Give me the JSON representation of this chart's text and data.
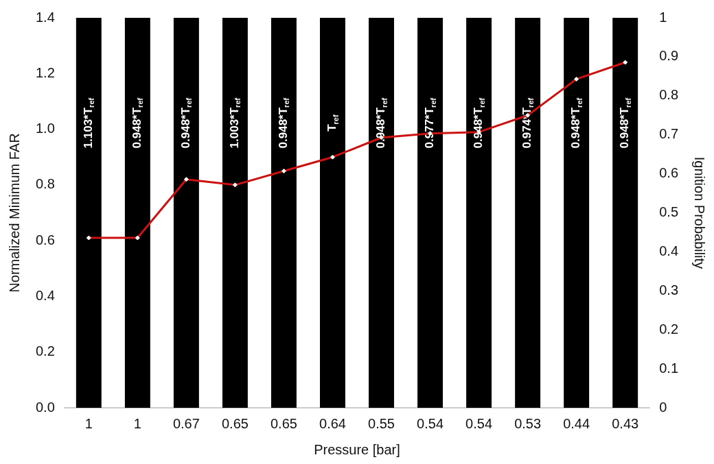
{
  "chart_data": {
    "type": "bar",
    "xlabel": "Pressure [bar]",
    "ylabel": "Normalized Minimum FAR",
    "y2label": "Ignition Probability",
    "categories": [
      "1",
      "1",
      "0.67",
      "0.65",
      "0.65",
      "0.64",
      "0.55",
      "0.54",
      "0.54",
      "0.53",
      "0.44",
      "0.43"
    ],
    "series": [
      {
        "axis": "y2",
        "color": "#000000",
        "values": [
          1,
          1,
          1,
          1,
          1,
          1,
          1,
          1,
          1,
          1,
          1,
          1
        ]
      },
      {
        "type": "line",
        "color": "#cc1111",
        "values": [
          0.61,
          0.61,
          0.82,
          0.8,
          0.85,
          0.9,
          0.97,
          0.985,
          0.99,
          1.05,
          1.18,
          1.24
        ]
      }
    ],
    "ylim": [
      0,
      1.4
    ],
    "yticks": [
      {
        "value": 0,
        "label": "0.0"
      },
      0.2,
      0.4,
      0.6,
      0.8,
      {
        "value": 1,
        "label": "1.0"
      },
      1.2,
      1.4
    ],
    "y2lim": [
      0,
      1
    ],
    "y2ticks": [
      0,
      0.1,
      0.2,
      0.3,
      0.4,
      0.5,
      0.6,
      0.7,
      0.8,
      0.9,
      1
    ],
    "annotations": [
      "1.103*T$_{ref}$",
      "0.948*T$_{ref}$",
      "0.948*T$_{ref}$",
      "1.003*T$_{ref}$",
      "0.948*T$_{ref}$",
      "T$_{ref}$",
      "0.948*T$_{ref}$",
      "0.977*T$_{ref}$",
      "0.948*T$_{ref}$",
      "0.974*T$_{ref}$",
      "0.948*T$_{ref}$",
      "0.948*T$_{ref}$"
    ],
    "marker": "diamond",
    "line_style": "solid",
    "grid": false,
    "legend": false
  }
}
